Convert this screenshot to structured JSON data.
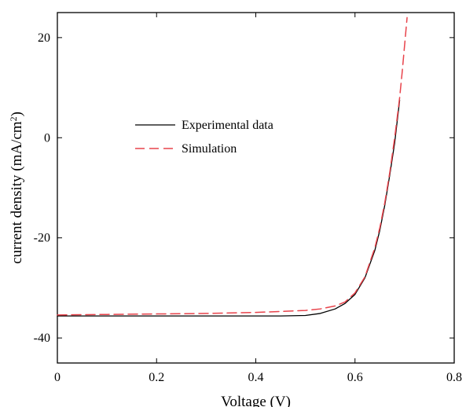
{
  "chart_data": {
    "type": "line",
    "xlabel": "Voltage (V)",
    "ylabel": "current density (mA/cm",
    "ylabel_superscript": "2",
    "ylabel_suffix": ")",
    "xlim": [
      0,
      0.8
    ],
    "ylim": [
      -45,
      25
    ],
    "xticks": [
      {
        "value": 0,
        "label": "0"
      },
      {
        "value": 0.2,
        "label": "0.2"
      },
      {
        "value": 0.4,
        "label": "0.4"
      },
      {
        "value": 0.6,
        "label": "0.6"
      },
      {
        "value": 0.8,
        "label": "0.8"
      }
    ],
    "yticks": [
      {
        "value": -40,
        "label": "-40"
      },
      {
        "value": -20,
        "label": "-20"
      },
      {
        "value": 0,
        "label": "0"
      },
      {
        "value": 20,
        "label": "20"
      }
    ],
    "grid": false,
    "legend_placement": "upper-left",
    "series": [
      {
        "name": "Experimental data",
        "color": "#000000",
        "style": "solid",
        "x": [
          0,
          0.1,
          0.2,
          0.3,
          0.4,
          0.45,
          0.5,
          0.53,
          0.56,
          0.58,
          0.6,
          0.62,
          0.64,
          0.65,
          0.66,
          0.67,
          0.68,
          0.69
        ],
        "y": [
          -35.6,
          -35.6,
          -35.6,
          -35.6,
          -35.6,
          -35.6,
          -35.5,
          -35.1,
          -34.2,
          -33.1,
          -31.3,
          -28.0,
          -22.5,
          -18.5,
          -13.5,
          -7.5,
          -1.0,
          7.5
        ]
      },
      {
        "name": "Simulation",
        "color": "#e8434b",
        "style": "dashed",
        "x": [
          0,
          0.1,
          0.2,
          0.3,
          0.4,
          0.45,
          0.5,
          0.53,
          0.56,
          0.58,
          0.6,
          0.62,
          0.64,
          0.65,
          0.66,
          0.67,
          0.68,
          0.69,
          0.695,
          0.7,
          0.705
        ],
        "y": [
          -35.4,
          -35.3,
          -35.2,
          -35.1,
          -34.9,
          -34.7,
          -34.5,
          -34.2,
          -33.6,
          -32.8,
          -31.0,
          -27.8,
          -22.0,
          -18.0,
          -13.0,
          -7.0,
          0.0,
          8.0,
          13.0,
          18.5,
          24.0
        ]
      }
    ]
  }
}
